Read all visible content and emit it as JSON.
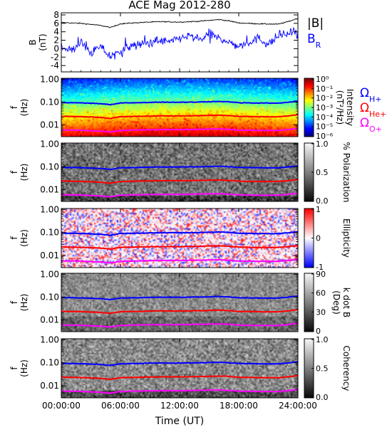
{
  "chart_data": {
    "title": "ACE Mag 2012-280",
    "x_axis": {
      "label": "Time (UT)",
      "ticks": [
        "00:00:00",
        "06:00:00",
        "12:00:00",
        "18:00:00",
        "24:00:00"
      ],
      "range_hours": [
        0,
        24
      ]
    },
    "panels": [
      {
        "id": "field",
        "type": "line",
        "ylabel": "B\n(nT)",
        "ylim": [
          -5.5,
          8.5
        ],
        "yticks": [
          "8",
          "6",
          "4",
          "2",
          "0",
          "-2",
          "-4"
        ],
        "ytick_values": [
          8,
          6,
          4,
          2,
          0,
          -2,
          -4
        ],
        "series": [
          {
            "name": "|B|",
            "color": "#000000",
            "t": [
              0,
              2,
              4,
              5,
              6,
              8,
              10,
              12,
              14,
              16,
              17,
              18,
              20,
              22,
              23,
              24
            ],
            "values": [
              6.2,
              6.0,
              5.5,
              5.0,
              5.9,
              6.2,
              6.4,
              6.3,
              6.5,
              6.9,
              6.6,
              6.1,
              5.9,
              5.8,
              6.4,
              7.2
            ]
          },
          {
            "name": "B",
            "subscript": "R",
            "color": "#0000ff",
            "t": [
              0,
              1,
              2,
              3,
              4,
              5,
              6,
              7,
              8,
              9,
              10,
              11,
              12,
              13,
              14,
              15,
              16,
              17,
              18,
              19,
              20,
              21,
              22,
              23,
              24
            ],
            "values": [
              0.5,
              -0.5,
              1.5,
              -1.0,
              0.5,
              -2.0,
              -0.5,
              0.5,
              1.0,
              1.5,
              2.0,
              1.5,
              2.5,
              3.0,
              2.0,
              3.5,
              2.5,
              1.5,
              0.5,
              1.5,
              2.5,
              1.0,
              3.0,
              3.5,
              4.2
            ]
          }
        ]
      },
      {
        "id": "psd",
        "type": "heatmap",
        "ylabel": "f\n(Hz)",
        "colorbar": {
          "label": "Intensity",
          "unit": "(nT²/Hz)",
          "scale": "log",
          "ticks": [
            "10⁰",
            "10⁻¹",
            "10⁻²",
            "10⁻³",
            "10⁻⁴",
            "10⁻⁵",
            "10⁻⁶"
          ]
        }
      },
      {
        "id": "polarization",
        "type": "heatmap",
        "ylabel": "f\n(Hz)",
        "colorbar": {
          "label": "% Polarization",
          "ticks": [
            "1.0",
            "0.5",
            "0.0"
          ]
        }
      },
      {
        "id": "ellipticity",
        "type": "heatmap",
        "ylabel": "f\n(Hz)",
        "colorbar": {
          "label": "Ellipticity",
          "ticks": [
            "1",
            "0",
            "-1"
          ]
        }
      },
      {
        "id": "kdotb",
        "type": "heatmap",
        "ylabel": "f\n(Hz)",
        "colorbar": {
          "label": "k dot B",
          "unit": "(Deg)",
          "ticks": [
            "90",
            "60",
            "30",
            "0"
          ]
        }
      },
      {
        "id": "coherency",
        "type": "heatmap",
        "ylabel": "f\n(Hz)",
        "colorbar": {
          "label": "Coherency",
          "ticks": [
            "1.0",
            "0.5",
            "0.0"
          ]
        }
      }
    ],
    "spectral_y_axis": {
      "scale": "log",
      "ylim": [
        0.003,
        1.1
      ],
      "ticks": [
        "1.00",
        "0.10",
        "0.01"
      ],
      "tick_values": [
        1.0,
        0.1,
        0.01
      ]
    },
    "gyrofrequency_legend": [
      {
        "symbol": "Ω",
        "subscript": "H+",
        "color": "#0000ff"
      },
      {
        "symbol": "Ω",
        "subscript": "He+",
        "color": "#ff0000"
      },
      {
        "symbol": "Ω",
        "subscript": "O+",
        "color": "#ff00ff"
      }
    ],
    "gyrofrequency_lines": [
      {
        "name": "H+",
        "color": "#0000ff",
        "t": [
          0,
          2,
          4,
          5,
          6,
          8,
          10,
          12,
          14,
          16,
          17,
          18,
          20,
          22,
          23,
          24
        ],
        "hz": [
          0.094,
          0.091,
          0.084,
          0.076,
          0.09,
          0.094,
          0.098,
          0.097,
          0.1,
          0.105,
          0.101,
          0.093,
          0.09,
          0.089,
          0.098,
          0.11
        ]
      },
      {
        "name": "He+",
        "color": "#ff0000",
        "t": [
          0,
          2,
          4,
          5,
          6,
          8,
          10,
          12,
          14,
          16,
          17,
          18,
          20,
          22,
          23,
          24
        ],
        "hz": [
          0.0235,
          0.0228,
          0.021,
          0.019,
          0.0225,
          0.0235,
          0.0245,
          0.0243,
          0.025,
          0.0263,
          0.0253,
          0.0233,
          0.0225,
          0.0223,
          0.0245,
          0.0275
        ]
      },
      {
        "name": "O+",
        "color": "#ff00ff",
        "t": [
          0,
          2,
          4,
          5,
          6,
          8,
          10,
          12,
          14,
          16,
          17,
          18,
          20,
          22,
          23,
          24
        ],
        "hz": [
          0.0059,
          0.0057,
          0.0052,
          0.0048,
          0.0056,
          0.0059,
          0.0061,
          0.0061,
          0.0063,
          0.0066,
          0.0063,
          0.0058,
          0.0056,
          0.0056,
          0.0061,
          0.0069
        ]
      }
    ]
  }
}
